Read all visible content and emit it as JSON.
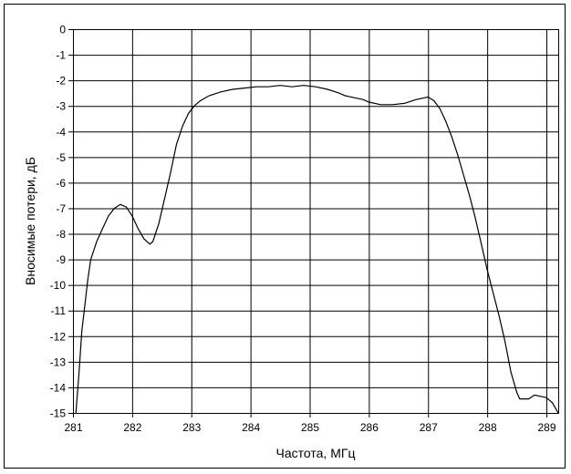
{
  "chart_data": {
    "type": "line",
    "title": "",
    "xlabel": "Частота, МГц",
    "ylabel": "Вносимые потери, дБ",
    "xlim": [
      281,
      289.2
    ],
    "ylim": [
      -15,
      0
    ],
    "x_ticks": [
      281,
      282,
      283,
      284,
      285,
      286,
      287,
      288,
      289
    ],
    "x_tick_labels": [
      "281",
      "282",
      "283",
      "284",
      "285",
      "286",
      "287",
      "288",
      "289"
    ],
    "y_ticks": [
      0,
      -1,
      -2,
      -3,
      -4,
      -5,
      -6,
      -7,
      -8,
      -9,
      -10,
      -11,
      -12,
      -13,
      -14,
      -15
    ],
    "y_tick_labels": [
      "0",
      "-1",
      "-2",
      "-3",
      "-4",
      "-5",
      "-6",
      "-7",
      "-8",
      "-9",
      "-10",
      "-11",
      "-12",
      "-13",
      "-14",
      "-15"
    ],
    "grid": true,
    "legend": "none",
    "line_color": "#000000",
    "series": [
      {
        "points": [
          [
            281.05,
            -15.0
          ],
          [
            281.1,
            -13.5
          ],
          [
            281.15,
            -11.8
          ],
          [
            281.2,
            -10.8
          ],
          [
            281.25,
            -9.8
          ],
          [
            281.3,
            -9.0
          ],
          [
            281.4,
            -8.3
          ],
          [
            281.5,
            -7.8
          ],
          [
            281.6,
            -7.3
          ],
          [
            281.7,
            -7.0
          ],
          [
            281.8,
            -6.85
          ],
          [
            281.9,
            -6.95
          ],
          [
            282.0,
            -7.3
          ],
          [
            282.1,
            -7.8
          ],
          [
            282.2,
            -8.2
          ],
          [
            282.3,
            -8.4
          ],
          [
            282.35,
            -8.3
          ],
          [
            282.45,
            -7.6
          ],
          [
            282.55,
            -6.6
          ],
          [
            282.65,
            -5.6
          ],
          [
            282.75,
            -4.5
          ],
          [
            282.85,
            -3.8
          ],
          [
            282.95,
            -3.3
          ],
          [
            283.05,
            -3.0
          ],
          [
            283.15,
            -2.8
          ],
          [
            283.3,
            -2.6
          ],
          [
            283.5,
            -2.45
          ],
          [
            283.7,
            -2.35
          ],
          [
            283.9,
            -2.3
          ],
          [
            284.1,
            -2.25
          ],
          [
            284.3,
            -2.25
          ],
          [
            284.5,
            -2.2
          ],
          [
            284.7,
            -2.25
          ],
          [
            284.9,
            -2.2
          ],
          [
            285.1,
            -2.25
          ],
          [
            285.3,
            -2.35
          ],
          [
            285.5,
            -2.5
          ],
          [
            285.6,
            -2.6
          ],
          [
            285.7,
            -2.65
          ],
          [
            285.9,
            -2.75
          ],
          [
            286.0,
            -2.85
          ],
          [
            286.2,
            -2.95
          ],
          [
            286.4,
            -2.95
          ],
          [
            286.6,
            -2.9
          ],
          [
            286.8,
            -2.75
          ],
          [
            286.9,
            -2.7
          ],
          [
            287.0,
            -2.65
          ],
          [
            287.1,
            -2.8
          ],
          [
            287.2,
            -3.1
          ],
          [
            287.3,
            -3.6
          ],
          [
            287.4,
            -4.2
          ],
          [
            287.5,
            -4.9
          ],
          [
            287.6,
            -5.7
          ],
          [
            287.7,
            -6.5
          ],
          [
            287.8,
            -7.4
          ],
          [
            287.9,
            -8.4
          ],
          [
            288.0,
            -9.4
          ],
          [
            288.1,
            -10.3
          ],
          [
            288.2,
            -11.2
          ],
          [
            288.3,
            -12.2
          ],
          [
            288.4,
            -13.4
          ],
          [
            288.5,
            -14.2
          ],
          [
            288.55,
            -14.45
          ],
          [
            288.7,
            -14.45
          ],
          [
            288.8,
            -14.3
          ],
          [
            288.9,
            -14.35
          ],
          [
            289.0,
            -14.4
          ],
          [
            289.1,
            -14.6
          ],
          [
            289.2,
            -15.0
          ]
        ]
      }
    ]
  }
}
